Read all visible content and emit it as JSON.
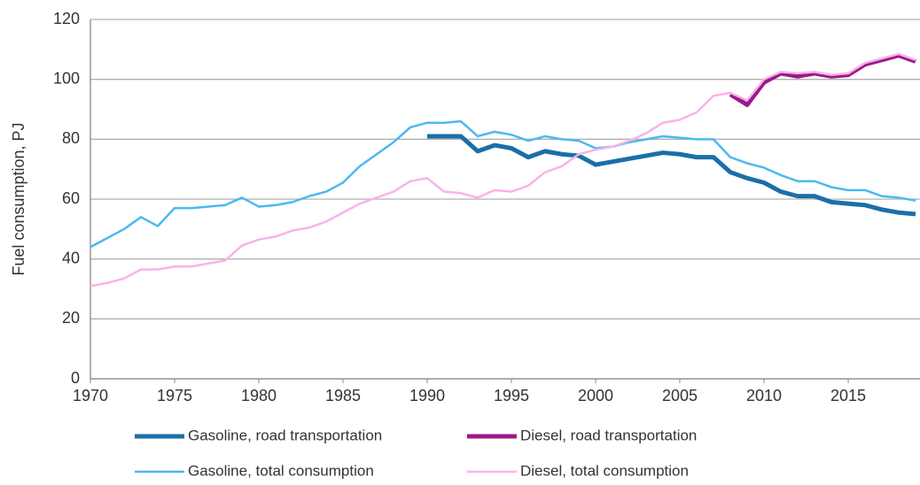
{
  "chart_data": {
    "type": "line",
    "y_label": "Fuel consumption, PJ",
    "x": [
      1970,
      1971,
      1972,
      1973,
      1974,
      1975,
      1976,
      1977,
      1978,
      1979,
      1980,
      1981,
      1982,
      1983,
      1984,
      1985,
      1986,
      1987,
      1988,
      1989,
      1990,
      1991,
      1992,
      1993,
      1994,
      1995,
      1996,
      1997,
      1998,
      1999,
      2000,
      2001,
      2002,
      2003,
      2004,
      2005,
      2006,
      2007,
      2008,
      2009,
      2010,
      2011,
      2012,
      2013,
      2014,
      2015,
      2016,
      2017,
      2018,
      2019
    ],
    "xlim": [
      1970,
      2019
    ],
    "xticks": [
      1970,
      1975,
      1980,
      1985,
      1990,
      1995,
      2000,
      2005,
      2010,
      2015
    ],
    "ylim": [
      0,
      120
    ],
    "yticks": [
      0,
      20,
      40,
      60,
      80,
      100,
      120
    ],
    "grid": true,
    "series": [
      {
        "name": "Gasoline, road transportation",
        "color": "#1a6fa8",
        "width": 5,
        "values": [
          null,
          null,
          null,
          null,
          null,
          null,
          null,
          null,
          null,
          null,
          null,
          null,
          null,
          null,
          null,
          null,
          null,
          null,
          null,
          null,
          81,
          81,
          81,
          76,
          78,
          77,
          74,
          76,
          75,
          74.5,
          71.5,
          72.5,
          73.5,
          74.5,
          75.5,
          75,
          74,
          74,
          69,
          67,
          65.5,
          62.5,
          61,
          61,
          59,
          58.5,
          58,
          56.5,
          55.5,
          55
        ]
      },
      {
        "name": "Diesel, road transportation",
        "color": "#9b1a8a",
        "width": 5,
        "values": [
          null,
          null,
          null,
          null,
          null,
          null,
          null,
          null,
          null,
          null,
          null,
          null,
          null,
          null,
          null,
          null,
          null,
          null,
          null,
          null,
          null,
          null,
          null,
          null,
          null,
          null,
          null,
          null,
          null,
          null,
          null,
          null,
          null,
          null,
          null,
          null,
          null,
          null,
          95,
          91.5,
          99,
          102,
          101,
          102,
          101,
          101.5,
          105,
          106.5,
          108,
          106
        ]
      },
      {
        "name": "Gasoline, total consumption",
        "color": "#4db8f0",
        "width": 2.5,
        "values": [
          44,
          47,
          50,
          54,
          51,
          57,
          57,
          57.5,
          58,
          60.5,
          57.5,
          58,
          59,
          61,
          62.5,
          65.5,
          71,
          75,
          79,
          84,
          85.5,
          85.5,
          86,
          81,
          82.5,
          81.5,
          79.5,
          81,
          80,
          79.5,
          77,
          77.5,
          79,
          80,
          81,
          80.5,
          80,
          80,
          74,
          72,
          70.5,
          68,
          66,
          66,
          64,
          63,
          63,
          61,
          60.5,
          59.5
        ]
      },
      {
        "name": "Diesel, total consumption",
        "color": "#f9b3e8",
        "width": 2.5,
        "values": [
          31,
          32,
          33.5,
          36.5,
          36.5,
          37.5,
          37.5,
          38.5,
          39.5,
          44.5,
          46.5,
          47.5,
          49.5,
          50.5,
          52.5,
          55.5,
          58.5,
          60.5,
          62.5,
          66,
          67,
          62.5,
          62,
          60.5,
          63,
          62.5,
          64.5,
          69,
          71,
          75,
          76.5,
          77.5,
          79.5,
          82,
          85.5,
          86.5,
          89,
          94.5,
          95.5,
          93,
          100,
          102.5,
          102,
          102.5,
          101.5,
          102,
          105.5,
          107,
          108.5,
          106.5
        ]
      }
    ]
  }
}
